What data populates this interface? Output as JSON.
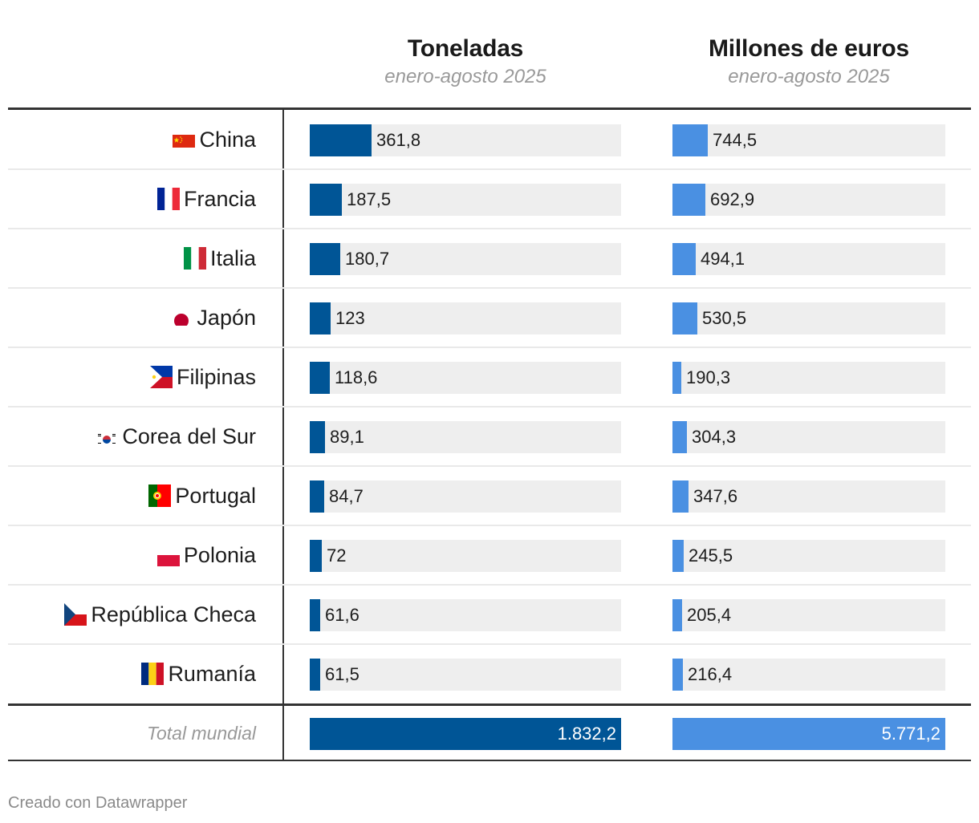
{
  "chart_data": {
    "type": "table",
    "columns": [
      {
        "key": "tons",
        "title": "Toneladas",
        "subtitle": "enero-agosto 2025",
        "color": "#005596",
        "max": 1832.2
      },
      {
        "key": "euros",
        "title": "Millones de euros",
        "subtitle": "enero-agosto 2025",
        "color": "#4a90e2",
        "max": 5771.2
      }
    ],
    "rows": [
      {
        "country": "China",
        "flag": "china-flag-icon",
        "tons": 361.8,
        "tons_label": "361,8",
        "euros": 744.5,
        "euros_label": "744,5"
      },
      {
        "country": "Francia",
        "flag": "france-flag-icon",
        "tons": 187.5,
        "tons_label": "187,5",
        "euros": 692.9,
        "euros_label": "692,9"
      },
      {
        "country": "Italia",
        "flag": "italy-flag-icon",
        "tons": 180.7,
        "tons_label": "180,7",
        "euros": 494.1,
        "euros_label": "494,1"
      },
      {
        "country": "Japón",
        "flag": "japan-flag-icon",
        "tons": 123,
        "tons_label": "123",
        "euros": 530.5,
        "euros_label": "530,5"
      },
      {
        "country": "Filipinas",
        "flag": "philippines-flag-icon",
        "tons": 118.6,
        "tons_label": "118,6",
        "euros": 190.3,
        "euros_label": "190,3"
      },
      {
        "country": "Corea del Sur",
        "flag": "south-korea-flag-icon",
        "tons": 89.1,
        "tons_label": "89,1",
        "euros": 304.3,
        "euros_label": "304,3"
      },
      {
        "country": "Portugal",
        "flag": "portugal-flag-icon",
        "tons": 84.7,
        "tons_label": "84,7",
        "euros": 347.6,
        "euros_label": "347,6"
      },
      {
        "country": "Polonia",
        "flag": "poland-flag-icon",
        "tons": 72,
        "tons_label": "72",
        "euros": 245.5,
        "euros_label": "245,5"
      },
      {
        "country": "República Checa",
        "flag": "czech-republic-flag-icon",
        "tons": 61.6,
        "tons_label": "61,6",
        "euros": 205.4,
        "euros_label": "205,4"
      },
      {
        "country": "Rumanía",
        "flag": "romania-flag-icon",
        "tons": 61.5,
        "tons_label": "61,5",
        "euros": 216.4,
        "euros_label": "216,4"
      }
    ],
    "total": {
      "label": "Total mundial",
      "tons": 1832.2,
      "tons_label": "1.832,2",
      "euros": 5771.2,
      "euros_label": "5.771,2"
    }
  },
  "footer": {
    "credit": "Creado con Datawrapper"
  }
}
